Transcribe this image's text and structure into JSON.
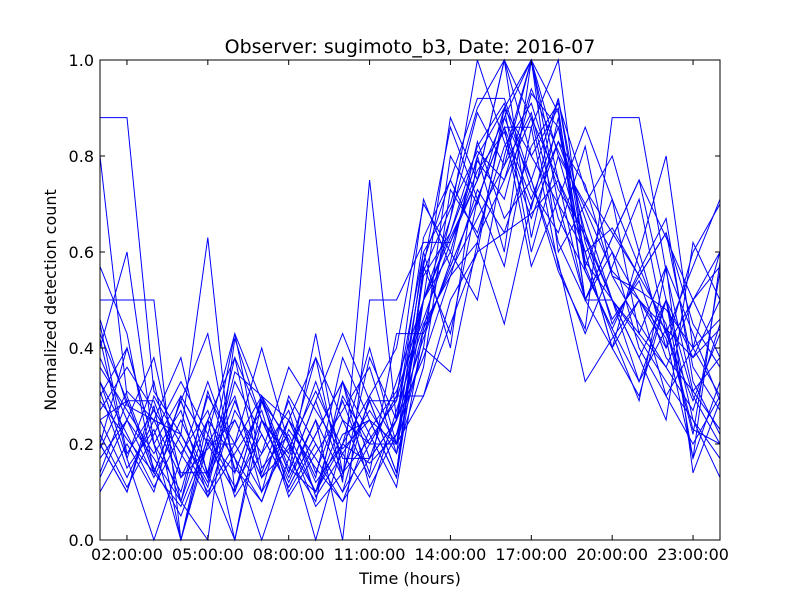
{
  "chart_data": {
    "type": "line",
    "title": "Observer: sugimoto_b3, Date: 2016-07",
    "xlabel": "Time (hours)",
    "ylabel": "Normalized detection count",
    "xlim": [
      1,
      24
    ],
    "ylim": [
      0.0,
      1.0
    ],
    "x_ticks": [
      2,
      5,
      8,
      11,
      14,
      17,
      20,
      23
    ],
    "x_tick_labels": [
      "02:00:00",
      "05:00:00",
      "08:00:00",
      "11:00:00",
      "14:00:00",
      "17:00:00",
      "20:00:00",
      "23:00:00"
    ],
    "y_ticks": [
      0.0,
      0.2,
      0.4,
      0.6,
      0.8,
      1.0
    ],
    "y_tick_labels": [
      "0.0",
      "0.2",
      "0.4",
      "0.6",
      "0.8",
      "1.0"
    ],
    "grid": false,
    "series_color": "#0000ff",
    "x": [
      1,
      2,
      3,
      4,
      5,
      6,
      7,
      8,
      9,
      10,
      11,
      12,
      13,
      14,
      15,
      16,
      17,
      18,
      19,
      20,
      21,
      22,
      23,
      24
    ],
    "series": [
      {
        "values": [
          0.88,
          0.88,
          0.31,
          0.22,
          0.63,
          0.1,
          0.25,
          0.18,
          0.38,
          0.12,
          0.75,
          0.25,
          0.38,
          0.55,
          0.62,
          0.88,
          0.75,
          0.56,
          0.44,
          0.88,
          0.88,
          0.56,
          0.31,
          0.38
        ]
      },
      {
        "values": [
          0.8,
          0.3,
          0.15,
          0.05,
          0.2,
          0.1,
          0.3,
          0.15,
          0.1,
          0.25,
          0.2,
          0.3,
          0.6,
          0.7,
          0.9,
          1.0,
          0.8,
          0.7,
          0.6,
          0.4,
          0.3,
          0.5,
          0.3,
          0.2
        ]
      },
      {
        "values": [
          0.5,
          0.5,
          0.5,
          0.0,
          0.25,
          0.0,
          0.25,
          0.12,
          0.25,
          0.0,
          0.5,
          0.5,
          0.62,
          0.62,
          0.75,
          1.0,
          0.88,
          0.62,
          0.5,
          0.5,
          0.38,
          0.25,
          0.62,
          0.5
        ]
      },
      {
        "values": [
          0.42,
          0.17,
          0.33,
          0.08,
          0.0,
          0.42,
          0.25,
          0.17,
          0.08,
          0.33,
          0.17,
          0.25,
          0.58,
          0.75,
          0.92,
          0.92,
          0.75,
          0.58,
          0.33,
          0.42,
          0.5,
          0.42,
          0.17,
          0.58
        ]
      },
      {
        "values": [
          0.25,
          0.29,
          0.29,
          0.14,
          0.14,
          0.43,
          0.29,
          0.14,
          0.29,
          0.14,
          0.29,
          0.29,
          0.71,
          0.57,
          0.71,
          0.86,
          0.86,
          0.57,
          0.43,
          0.57,
          0.71,
          0.43,
          0.29,
          0.43
        ]
      },
      {
        "values": [
          0.33,
          0.22,
          0.11,
          0.22,
          0.11,
          0.33,
          0.22,
          0.11,
          0.22,
          0.33,
          0.22,
          0.11,
          0.44,
          0.67,
          0.89,
          0.78,
          1.0,
          0.89,
          0.56,
          0.44,
          0.33,
          0.44,
          0.22,
          0.56
        ]
      },
      {
        "values": [
          0.2,
          0.4,
          0.2,
          0.1,
          0.3,
          0.2,
          0.1,
          0.2,
          0.1,
          0.3,
          0.2,
          0.2,
          0.5,
          0.6,
          0.8,
          0.9,
          1.0,
          0.7,
          0.5,
          0.6,
          0.4,
          0.3,
          0.4,
          0.3
        ]
      },
      {
        "values": [
          0.14,
          0.29,
          0.14,
          0.29,
          0.14,
          0.0,
          0.29,
          0.14,
          0.43,
          0.14,
          0.29,
          0.14,
          0.57,
          0.86,
          0.71,
          0.57,
          0.86,
          1.0,
          0.57,
          0.43,
          0.29,
          0.57,
          0.14,
          0.29
        ]
      },
      {
        "values": [
          0.31,
          0.15,
          0.23,
          0.08,
          0.31,
          0.15,
          0.08,
          0.23,
          0.15,
          0.08,
          0.23,
          0.31,
          0.46,
          0.62,
          0.77,
          0.85,
          0.69,
          0.92,
          0.62,
          0.46,
          0.54,
          0.38,
          0.31,
          0.23
        ]
      },
      {
        "values": [
          0.36,
          0.27,
          0.18,
          0.27,
          0.09,
          0.18,
          0.27,
          0.09,
          0.18,
          0.27,
          0.36,
          0.18,
          0.55,
          0.64,
          0.82,
          0.91,
          0.73,
          0.64,
          0.82,
          0.55,
          0.45,
          0.36,
          0.27,
          0.45
        ]
      },
      {
        "values": [
          0.45,
          0.18,
          0.27,
          0.18,
          0.27,
          0.09,
          0.18,
          0.27,
          0.09,
          0.18,
          0.27,
          0.18,
          0.36,
          0.73,
          0.64,
          0.82,
          0.91,
          0.73,
          0.64,
          0.45,
          0.55,
          0.64,
          0.36,
          0.27
        ]
      },
      {
        "values": [
          0.13,
          0.25,
          0.38,
          0.13,
          0.25,
          0.38,
          0.13,
          0.25,
          0.13,
          0.38,
          0.25,
          0.13,
          0.5,
          0.63,
          0.75,
          0.88,
          1.0,
          0.75,
          0.63,
          0.5,
          0.38,
          0.5,
          0.25,
          0.13
        ]
      },
      {
        "values": [
          0.57,
          0.43,
          0.14,
          0.29,
          0.14,
          0.29,
          0.14,
          0.29,
          0.14,
          0.29,
          0.14,
          0.43,
          0.43,
          0.57,
          0.71,
          0.86,
          0.71,
          0.86,
          0.57,
          0.71,
          0.43,
          0.57,
          0.43,
          0.29
        ]
      },
      {
        "values": [
          0.2,
          0.1,
          0.3,
          0.2,
          0.1,
          0.2,
          0.3,
          0.1,
          0.2,
          0.1,
          0.3,
          0.2,
          0.4,
          0.8,
          0.7,
          0.9,
          0.6,
          0.8,
          0.7,
          0.6,
          0.5,
          0.4,
          0.6,
          0.7
        ]
      },
      {
        "values": [
          0.29,
          0.21,
          0.14,
          0.07,
          0.21,
          0.14,
          0.29,
          0.21,
          0.07,
          0.14,
          0.21,
          0.29,
          0.5,
          0.64,
          0.79,
          0.71,
          0.93,
          0.86,
          0.64,
          0.5,
          0.43,
          0.36,
          0.5,
          0.57
        ]
      },
      {
        "values": [
          0.4,
          0.6,
          0.2,
          0.0,
          0.2,
          0.2,
          0.4,
          0.2,
          0.0,
          0.2,
          0.4,
          0.2,
          0.6,
          0.4,
          0.8,
          0.6,
          1.0,
          0.8,
          0.6,
          0.4,
          0.6,
          0.8,
          0.4,
          0.6
        ]
      },
      {
        "values": [
          0.25,
          0.13,
          0.25,
          0.38,
          0.13,
          0.25,
          0.13,
          0.25,
          0.38,
          0.25,
          0.13,
          0.25,
          0.63,
          0.75,
          0.63,
          0.75,
          0.88,
          0.75,
          0.5,
          0.63,
          0.75,
          0.5,
          0.38,
          0.5
        ]
      },
      {
        "values": [
          0.33,
          0.17,
          0.0,
          0.17,
          0.33,
          0.17,
          0.0,
          0.17,
          0.33,
          0.17,
          0.17,
          0.33,
          0.5,
          0.67,
          1.0,
          0.83,
          0.67,
          0.83,
          0.67,
          0.5,
          0.33,
          0.5,
          0.17,
          0.33
        ]
      },
      {
        "values": [
          0.19,
          0.31,
          0.25,
          0.13,
          0.19,
          0.25,
          0.13,
          0.19,
          0.31,
          0.19,
          0.25,
          0.13,
          0.56,
          0.69,
          0.81,
          0.75,
          0.94,
          0.81,
          0.69,
          0.56,
          0.5,
          0.44,
          0.38,
          0.44
        ]
      },
      {
        "values": [
          0.43,
          0.29,
          0.14,
          0.29,
          0.43,
          0.14,
          0.29,
          0.14,
          0.29,
          0.43,
          0.29,
          0.14,
          0.57,
          0.43,
          0.71,
          0.86,
          0.57,
          0.71,
          0.86,
          0.71,
          0.57,
          0.43,
          0.57,
          0.71
        ]
      },
      {
        "values": [
          0.1,
          0.2,
          0.1,
          0.3,
          0.2,
          0.3,
          0.1,
          0.3,
          0.2,
          0.1,
          0.2,
          0.3,
          0.3,
          0.5,
          0.6,
          0.9,
          0.8,
          0.9,
          0.5,
          0.4,
          0.5,
          0.3,
          0.2,
          0.3
        ]
      },
      {
        "values": [
          0.27,
          0.36,
          0.27,
          0.18,
          0.09,
          0.27,
          0.18,
          0.36,
          0.27,
          0.18,
          0.09,
          0.27,
          0.45,
          0.55,
          0.73,
          0.64,
          0.82,
          0.91,
          0.73,
          0.64,
          0.55,
          0.64,
          0.45,
          0.36
        ]
      },
      {
        "values": [
          0.38,
          0.25,
          0.13,
          0.25,
          0.13,
          0.38,
          0.25,
          0.13,
          0.25,
          0.13,
          0.38,
          0.25,
          0.5,
          0.88,
          0.75,
          1.0,
          0.63,
          0.88,
          0.5,
          0.63,
          0.75,
          0.63,
          0.5,
          0.38
        ]
      },
      {
        "values": [
          0.22,
          0.11,
          0.22,
          0.33,
          0.22,
          0.11,
          0.22,
          0.11,
          0.22,
          0.33,
          0.11,
          0.22,
          0.44,
          0.56,
          0.67,
          0.78,
          0.89,
          0.67,
          0.56,
          0.44,
          0.56,
          0.67,
          0.33,
          0.22
        ]
      },
      {
        "values": [
          0.3,
          0.4,
          0.2,
          0.3,
          0.2,
          0.1,
          0.3,
          0.2,
          0.1,
          0.2,
          0.3,
          0.4,
          0.7,
          0.6,
          0.5,
          0.8,
          1.0,
          0.6,
          0.7,
          0.8,
          0.6,
          0.4,
          0.5,
          0.6
        ]
      },
      {
        "values": [
          0.17,
          0.25,
          0.17,
          0.08,
          0.25,
          0.17,
          0.08,
          0.25,
          0.17,
          0.08,
          0.17,
          0.25,
          0.42,
          0.58,
          0.83,
          0.67,
          0.75,
          0.92,
          0.58,
          0.5,
          0.42,
          0.33,
          0.25,
          0.17
        ]
      },
      {
        "values": [
          0.2,
          0.1,
          0.28,
          0.0,
          0.22,
          0.43,
          0.15,
          0.22,
          0.1,
          0.22,
          0.25,
          0.2,
          0.3,
          0.45,
          0.6,
          0.64,
          0.68,
          0.75,
          0.6,
          0.65,
          0.55,
          0.45,
          0.23,
          0.2
        ]
      },
      {
        "values": [
          0.46,
          0.28,
          0.25,
          0.22,
          0.12,
          0.35,
          0.3,
          0.25,
          0.12,
          0.2,
          0.16,
          0.22,
          0.4,
          0.35,
          0.62,
          0.45,
          0.7,
          0.83,
          0.74,
          0.55,
          0.52,
          0.48,
          0.4,
          0.46
        ]
      }
    ]
  }
}
